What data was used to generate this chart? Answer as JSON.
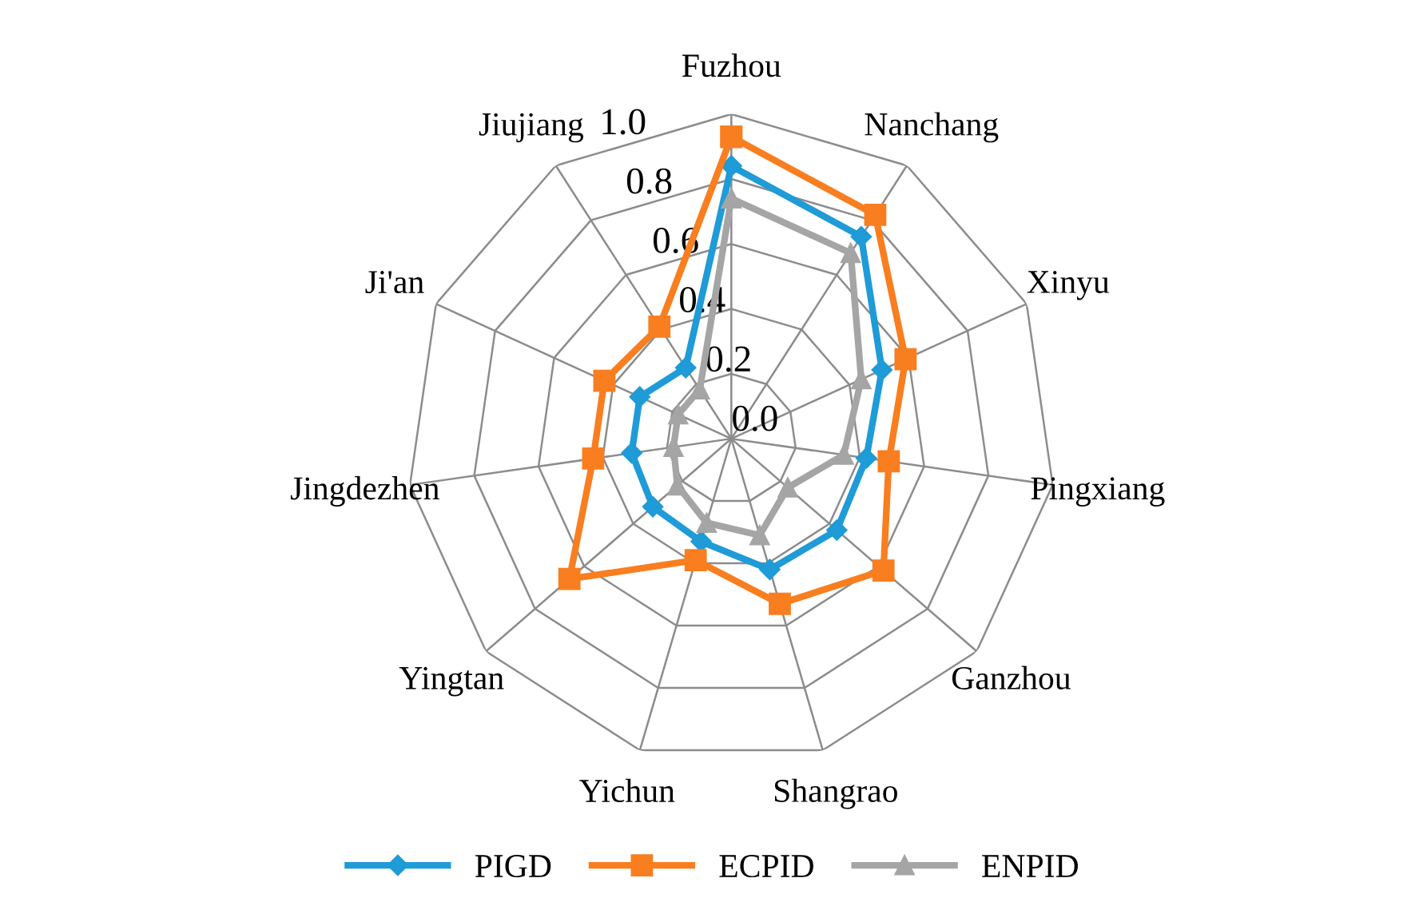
{
  "chart_data": {
    "type": "radar",
    "categories": [
      "Fuzhou",
      "Nanchang",
      "Xinyu",
      "Pingxiang",
      "Ganzhou",
      "Shangrao",
      "Yichun",
      "Yingtan",
      "Jingdezhen",
      "Ji'an",
      "Jiujiang"
    ],
    "series": [
      {
        "name": "PIGD",
        "color": "#1f9bd7",
        "marker": "diamond",
        "values": [
          0.84,
          0.74,
          0.51,
          0.42,
          0.43,
          0.42,
          0.33,
          0.32,
          0.31,
          0.31,
          0.26
        ]
      },
      {
        "name": "ECPID",
        "color": "#f97e1f",
        "marker": "square",
        "values": [
          0.93,
          0.82,
          0.59,
          0.49,
          0.62,
          0.53,
          0.39,
          0.66,
          0.43,
          0.43,
          0.41
        ]
      },
      {
        "name": "ENPID",
        "color": "#a5a5a5",
        "marker": "triangle",
        "values": [
          0.74,
          0.68,
          0.44,
          0.35,
          0.23,
          0.31,
          0.27,
          0.22,
          0.18,
          0.18,
          0.18
        ]
      }
    ],
    "ylim": [
      0,
      1.0
    ],
    "yticks": [
      {
        "value": 0,
        "label": "0.0"
      },
      {
        "value": 0.2,
        "label": "0.2"
      },
      {
        "value": 0.4,
        "label": "0.4"
      },
      {
        "value": 0.6,
        "label": "0.6"
      },
      {
        "value": 0.8,
        "label": "0.8"
      },
      {
        "value": 1.0,
        "label": "1.0"
      }
    ],
    "grid": true,
    "legend": "bottom"
  }
}
